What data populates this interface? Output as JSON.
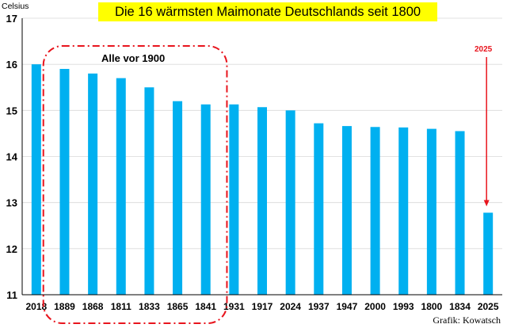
{
  "chart_data": {
    "type": "bar",
    "title": "Die 16 wärmsten Maimonate Deutschlands seit 1800",
    "ylabel": "Celsius",
    "categories": [
      "2018",
      "1889",
      "1868",
      "1811",
      "1833",
      "1865",
      "1841",
      "1931",
      "1917",
      "2024",
      "1937",
      "1947",
      "2000",
      "1993",
      "1800",
      "1834",
      "2025"
    ],
    "values": [
      16.0,
      15.9,
      15.8,
      15.7,
      15.5,
      15.2,
      15.13,
      15.13,
      15.07,
      15.0,
      14.72,
      14.66,
      14.64,
      14.63,
      14.6,
      14.55,
      12.78
    ],
    "ylim": [
      11,
      17
    ],
    "yticks": [
      11,
      12,
      13,
      14,
      15,
      16,
      17
    ],
    "grid": true,
    "bar_color": "#00b0f0",
    "group_annotation": {
      "label": "Alle vor 1900",
      "categories": [
        "1889",
        "1868",
        "1811",
        "1833",
        "1865",
        "1841"
      ],
      "color": "#e8141d"
    },
    "arrow_annotation": {
      "label": "2025",
      "category": "2025",
      "color": "#e8141d"
    }
  },
  "footer": {
    "credit": "Grafik: Kowatsch"
  },
  "colors": {
    "title_background": "#ffff00",
    "grid": "#d9d9d9"
  }
}
